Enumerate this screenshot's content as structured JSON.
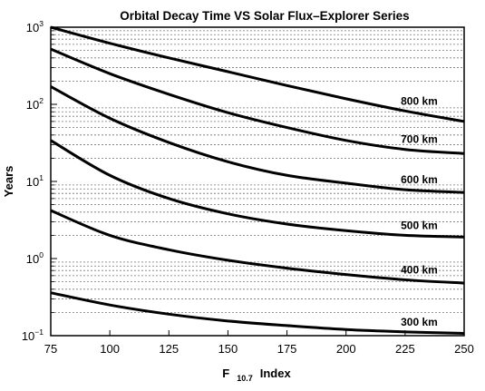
{
  "chart_data": {
    "type": "line",
    "title": "Orbital Decay Time VS Solar Flux–Explorer Series",
    "xlabel": {
      "main": "F",
      "subscript": "10.7",
      "suffix": "Index"
    },
    "ylabel": "Years",
    "xlim": [
      75,
      250
    ],
    "ylim": [
      0.1,
      1000
    ],
    "yscale": "log",
    "grid": "horizontal dashed minor lines",
    "x_ticks": [
      "75",
      "100",
      "125",
      "150",
      "175",
      "200",
      "225",
      "250"
    ],
    "y_ticks": [
      {
        "base": "10",
        "exp": "3"
      },
      {
        "base": "10",
        "exp": "2"
      },
      {
        "base": "10",
        "exp": "1"
      },
      {
        "base": "10",
        "exp": "0"
      },
      {
        "base": "10",
        "exp": "−1"
      }
    ],
    "x": [
      75,
      100,
      125,
      150,
      175,
      200,
      225,
      250
    ],
    "series": [
      {
        "name": "800 km",
        "values": [
          1000,
          620,
          400,
          265,
          175,
          118,
          82,
          60
        ]
      },
      {
        "name": "700 km",
        "values": [
          520,
          250,
          135,
          78,
          50,
          34,
          26,
          23
        ]
      },
      {
        "name": "600 km",
        "values": [
          170,
          66,
          32,
          18,
          12,
          9.5,
          7.8,
          7.2
        ]
      },
      {
        "name": "500 km",
        "values": [
          34,
          12,
          6.0,
          3.8,
          2.8,
          2.3,
          2.0,
          1.9
        ]
      },
      {
        "name": "400 km",
        "values": [
          4.2,
          2.0,
          1.3,
          0.95,
          0.75,
          0.62,
          0.53,
          0.48
        ]
      },
      {
        "name": "300 km",
        "values": [
          0.36,
          0.25,
          0.19,
          0.155,
          0.135,
          0.12,
          0.112,
          0.107
        ]
      }
    ]
  }
}
